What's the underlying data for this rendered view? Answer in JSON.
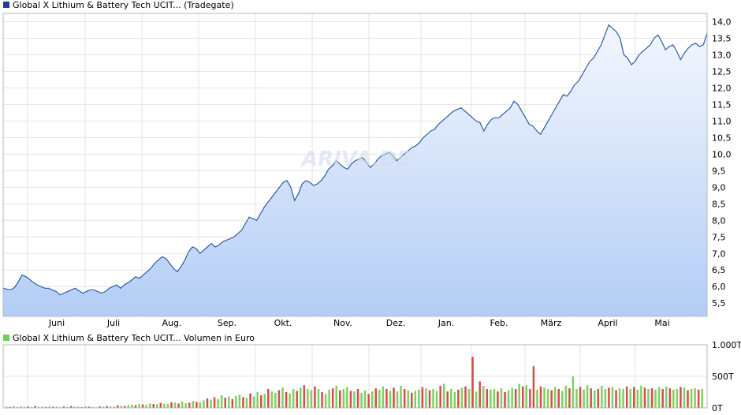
{
  "chart_data": [
    {
      "type": "area",
      "legend": "Global X Lithium & Battery Tech UCIT... (Tradegate)",
      "legend_color": "#1f3f99",
      "watermark": "ARIVA.DE",
      "x_labels": [
        "Juni",
        "Juli",
        "Aug.",
        "Sep.",
        "Okt.",
        "Nov.",
        "Dez.",
        "Jan.",
        "Feb.",
        "März",
        "April",
        "Mai"
      ],
      "y_tick_labels": [
        "5,5",
        "6,0",
        "6,5",
        "7,0",
        "7,5",
        "8,0",
        "8,5",
        "9,0",
        "9,5",
        "10,0",
        "10,5",
        "11,0",
        "11,5",
        "12,0",
        "12,5",
        "13,0",
        "13,5",
        "14,0"
      ],
      "ylim": [
        5.1,
        14.25
      ],
      "line_color": "#2b5ca8",
      "fill_top_color": "#f3f7fe",
      "fill_bottom_color": "#b4cdf5",
      "grid": true,
      "series": [
        {
          "values": [
            5.95,
            5.92,
            5.9,
            5.97,
            6.15,
            6.35,
            6.3,
            6.22,
            6.12,
            6.05,
            6.0,
            5.95,
            5.95,
            5.9,
            5.85,
            5.75,
            5.8,
            5.85,
            5.9,
            5.95,
            5.88,
            5.8,
            5.85,
            5.9,
            5.9,
            5.85,
            5.8,
            5.85,
            5.95,
            6.0,
            6.05,
            5.95,
            6.05,
            6.12,
            6.2,
            6.3,
            6.25,
            6.35,
            6.45,
            6.55,
            6.7,
            6.8,
            6.9,
            6.85,
            6.7,
            6.55,
            6.45,
            6.6,
            6.8,
            7.05,
            7.2,
            7.15,
            7.0,
            7.1,
            7.2,
            7.3,
            7.2,
            7.25,
            7.35,
            7.4,
            7.45,
            7.5,
            7.6,
            7.7,
            7.9,
            8.1,
            8.05,
            8.0,
            8.2,
            8.4,
            8.55,
            8.7,
            8.85,
            9.0,
            9.15,
            9.2,
            9.0,
            8.6,
            8.8,
            9.1,
            9.2,
            9.15,
            9.05,
            9.1,
            9.2,
            9.35,
            9.55,
            9.65,
            9.8,
            9.7,
            9.6,
            9.55,
            9.7,
            9.8,
            9.85,
            9.9,
            9.75,
            9.6,
            9.7,
            9.85,
            9.95,
            10.0,
            10.05,
            9.95,
            9.8,
            9.9,
            10.0,
            10.1,
            10.2,
            10.25,
            10.35,
            10.5,
            10.6,
            10.7,
            10.75,
            10.9,
            11.0,
            11.1,
            11.2,
            11.3,
            11.35,
            11.4,
            11.3,
            11.2,
            11.1,
            11.0,
            10.95,
            10.7,
            10.9,
            11.05,
            11.1,
            11.1,
            11.2,
            11.3,
            11.4,
            11.6,
            11.5,
            11.3,
            11.1,
            10.9,
            10.85,
            10.7,
            10.6,
            10.8,
            11.0,
            11.2,
            11.4,
            11.6,
            11.8,
            11.75,
            11.9,
            12.1,
            12.2,
            12.4,
            12.6,
            12.8,
            12.9,
            13.1,
            13.3,
            13.6,
            13.9,
            13.8,
            13.7,
            13.5,
            13.0,
            12.9,
            12.7,
            12.8,
            13.0,
            13.1,
            13.2,
            13.3,
            13.5,
            13.6,
            13.4,
            13.15,
            13.25,
            13.3,
            13.1,
            12.85,
            13.05,
            13.2,
            13.3,
            13.35,
            13.25,
            13.3,
            13.65
          ]
        }
      ]
    },
    {
      "type": "bar",
      "legend": "Global X Lithium & Battery Tech UCIT... Volumen in Euro",
      "legend_color": "#6dcf58",
      "y_tick_labels": [
        "1.000T",
        "500T",
        "0T"
      ],
      "ylim": [
        0,
        1000
      ],
      "up_color": "#7fd15f",
      "down_color": "#d64b4b",
      "series": [
        {
          "values": [
            20,
            15,
            30,
            10,
            25,
            18,
            22,
            12,
            30,
            16,
            20,
            14,
            25,
            18,
            20,
            10,
            22,
            15,
            28,
            20,
            18,
            12,
            26,
            20,
            15,
            10,
            24,
            18,
            30,
            22,
            20,
            40,
            35,
            30,
            45,
            50,
            42,
            60,
            55,
            48,
            70,
            62,
            58,
            80,
            66,
            60,
            90,
            85,
            70,
            100,
            75,
            82,
            110,
            95,
            88,
            120,
            150,
            130,
            170,
            140,
            200,
            160,
            180,
            140,
            190,
            210,
            170,
            160,
            230,
            180,
            250,
            200,
            220,
            300,
            260,
            240,
            280,
            320,
            250,
            230,
            300,
            270,
            320,
            360,
            300,
            280,
            340,
            300,
            250,
            220,
            290,
            310,
            350,
            280,
            300,
            330,
            270,
            260,
            300,
            240,
            280,
            220,
            260,
            310,
            290,
            340,
            300,
            270,
            320,
            260,
            350,
            300,
            280,
            240,
            270,
            290,
            330,
            310,
            280,
            300,
            270,
            350,
            380,
            260,
            300,
            250,
            290,
            320,
            340,
            300,
            810,
            260,
            420,
            350,
            300,
            290,
            300,
            260,
            310,
            250,
            280,
            320,
            300,
            380,
            340,
            360,
            300,
            660,
            290,
            340,
            320,
            300,
            280,
            330,
            300,
            270,
            350,
            310,
            500,
            300,
            330,
            290,
            360,
            310,
            280,
            300,
            350,
            300,
            320,
            330,
            280,
            310,
            300,
            340,
            300,
            330,
            290,
            350,
            320,
            300,
            310,
            290,
            330,
            300,
            340,
            310,
            290,
            300,
            330,
            320,
            280,
            300,
            310,
            290,
            300
          ],
          "direction": [
            1,
            0,
            1,
            0,
            1,
            1,
            0,
            1,
            0,
            1,
            1,
            0,
            1,
            0,
            1,
            1,
            0,
            1,
            0,
            1,
            1,
            0,
            1,
            0,
            1,
            1,
            0,
            1,
            0,
            1,
            1,
            0,
            1,
            0,
            1,
            1,
            0,
            1,
            0,
            1,
            1,
            0,
            1,
            0,
            1,
            1,
            0,
            1,
            0,
            1,
            1,
            0,
            1,
            0,
            1,
            1,
            0,
            1,
            0,
            1,
            1,
            0,
            1,
            0,
            1,
            1,
            0,
            1,
            0,
            1,
            1,
            0,
            1,
            0,
            1,
            1,
            0,
            1,
            0,
            1,
            1,
            0,
            1,
            0,
            1,
            1,
            0,
            1,
            0,
            1,
            1,
            0,
            1,
            0,
            1,
            1,
            0,
            1,
            0,
            1,
            1,
            0,
            1,
            0,
            1,
            1,
            0,
            1,
            0,
            1,
            1,
            0,
            1,
            0,
            1,
            1,
            0,
            1,
            0,
            1,
            1,
            0,
            1,
            0,
            1,
            1,
            0,
            1,
            0,
            1,
            0,
            1,
            0,
            1,
            0,
            1,
            1,
            0,
            1,
            0,
            1,
            1,
            0,
            1,
            0,
            1,
            0,
            0,
            1,
            0,
            1,
            1,
            0,
            1,
            0,
            1,
            1,
            0,
            1,
            1,
            0,
            1,
            1,
            0,
            1,
            0,
            1,
            1,
            0,
            1,
            0,
            1,
            1,
            0,
            1,
            0,
            1,
            1,
            0,
            1,
            0,
            1,
            1,
            0,
            1,
            0,
            1,
            1,
            0,
            1,
            0,
            1,
            1,
            0,
            1,
            0,
            1,
            1,
            0,
            1,
            0
          ]
        }
      ]
    }
  ]
}
